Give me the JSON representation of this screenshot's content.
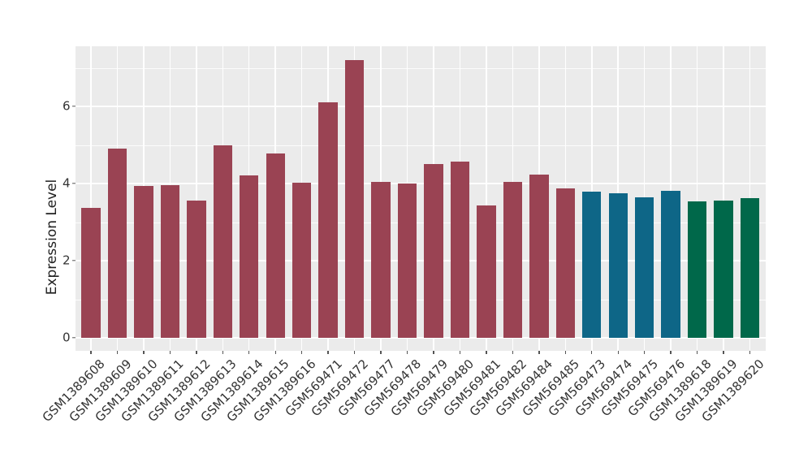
{
  "chart_data": {
    "type": "bar",
    "title": "",
    "xlabel": "",
    "ylabel": "Expression Level",
    "categories": [
      "GSM1389608",
      "GSM1389609",
      "GSM1389610",
      "GSM1389611",
      "GSM1389612",
      "GSM1389613",
      "GSM1389614",
      "GSM1389615",
      "GSM1389616",
      "GSM569471",
      "GSM569472",
      "GSM569477",
      "GSM569478",
      "GSM569479",
      "GSM569480",
      "GSM569481",
      "GSM569482",
      "GSM569484",
      "GSM569485",
      "GSM569473",
      "GSM569474",
      "GSM569475",
      "GSM569476",
      "GSM1389618",
      "GSM1389619",
      "GSM1389620"
    ],
    "values": [
      3.37,
      4.9,
      3.94,
      3.96,
      3.55,
      4.98,
      4.21,
      4.78,
      4.02,
      6.1,
      7.21,
      4.05,
      4.0,
      4.51,
      4.57,
      3.44,
      4.04,
      4.24,
      3.87,
      3.8,
      3.74,
      3.64,
      3.81,
      3.54,
      3.56,
      3.63
    ],
    "bar_colors": [
      "#9A4353",
      "#9A4353",
      "#9A4353",
      "#9A4353",
      "#9A4353",
      "#9A4353",
      "#9A4353",
      "#9A4353",
      "#9A4353",
      "#9A4353",
      "#9A4353",
      "#9A4353",
      "#9A4353",
      "#9A4353",
      "#9A4353",
      "#9A4353",
      "#9A4353",
      "#9A4353",
      "#9A4353",
      "#0E6687",
      "#0E6687",
      "#0E6687",
      "#0E6687",
      "#00684A",
      "#00684A",
      "#00684A"
    ],
    "group_palette": {
      "maroon": "#9A4353",
      "teal": "#0E6687",
      "green": "#00684A"
    },
    "yticks": [
      0,
      2,
      4,
      6
    ],
    "yticks_minor": [
      1,
      3,
      5,
      7
    ],
    "ylim": [
      -0.36,
      7.56
    ],
    "grid": "white major+minor horizontal, white vertical at each category",
    "legend": "none",
    "panel_background": "#EBEBEB",
    "x_tick_rotation_deg": 45
  }
}
